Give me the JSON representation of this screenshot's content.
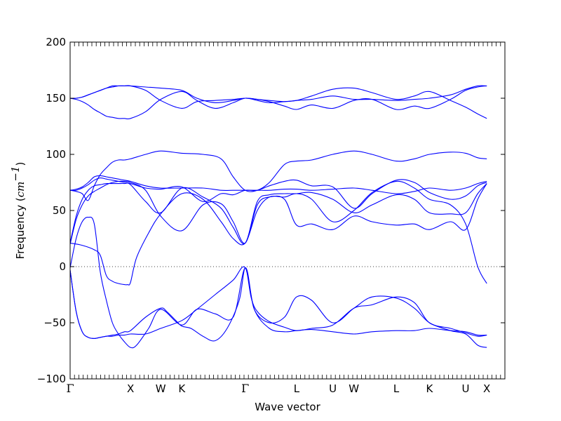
{
  "chart_data": {
    "type": "line",
    "title": "",
    "xlabel": "Wave vector",
    "ylabel": {
      "prefix": "Frequency (",
      "unit_base": "cm",
      "unit_exponent": "−1",
      "suffix": ")"
    },
    "ylim": [
      -100,
      200
    ],
    "yticks": [
      -100,
      -50,
      0,
      50,
      100,
      150,
      200
    ],
    "ytick_labels": [
      "−100",
      "−50",
      "0",
      "50",
      "100",
      "150",
      "200"
    ],
    "xlim": [
      0,
      7.2
    ],
    "high_symmetry_points": [
      {
        "label": "Γ",
        "x": 0
      },
      {
        "label": "X",
        "x": 1.0
      },
      {
        "label": "W",
        "x": 1.5
      },
      {
        "label": "K",
        "x": 1.85
      },
      {
        "label": "Γ",
        "x": 2.9
      },
      {
        "label": "L",
        "x": 3.75
      },
      {
        "label": "U",
        "x": 4.35
      },
      {
        "label": "W",
        "x": 4.7
      },
      {
        "label": "L",
        "x": 5.4
      },
      {
        "label": "K",
        "x": 5.95
      },
      {
        "label": "U",
        "x": 6.55
      },
      {
        "label": "X",
        "x": 6.9
      }
    ],
    "zero_line": true,
    "line_color": "#0000ff",
    "bands": [
      {
        "x": [
          0,
          0.1,
          0.2,
          0.3,
          0.4,
          0.5,
          0.6,
          0.7,
          0.8,
          0.9,
          1.0,
          1.25,
          1.5,
          1.85,
          2.1,
          2.4,
          2.7,
          2.9,
          3.05,
          3.3,
          3.55,
          3.75,
          4.0,
          4.35,
          4.7,
          5.0,
          5.4,
          5.7,
          5.95,
          6.3,
          6.55,
          6.75,
          6.9
        ],
        "y": [
          -3,
          -40,
          -58,
          -63,
          -64,
          -63,
          -62,
          -62,
          -61,
          -61,
          -60,
          -60,
          -55,
          -48,
          -38,
          -25,
          -12,
          -1,
          -38,
          -55,
          -58,
          -57,
          -56,
          -58,
          -60,
          -58,
          -57,
          -57,
          -55,
          -57,
          -58,
          -61,
          -61
        ]
      },
      {
        "x": [
          0,
          0.1,
          0.2,
          0.3,
          0.4,
          0.5,
          0.6,
          0.7,
          0.8,
          0.9,
          1.0,
          1.25,
          1.5,
          1.6,
          1.75,
          1.85,
          2.0,
          2.2,
          2.4,
          2.6,
          2.8,
          2.9,
          3.0,
          3.1,
          3.3,
          3.55,
          3.75,
          4.0,
          4.35,
          4.7,
          5.0,
          5.4,
          5.7,
          5.95,
          6.3,
          6.55,
          6.75,
          6.9
        ],
        "y": [
          -3,
          -40,
          -58,
          -63,
          -64,
          -63,
          -62,
          -61,
          -60,
          -58,
          -57,
          -45,
          -37,
          -40,
          -48,
          -53,
          -55,
          -62,
          -66,
          -55,
          -30,
          -1,
          -28,
          -40,
          -49,
          -54,
          -57,
          -55,
          -52,
          -37,
          -34,
          -27,
          -32,
          -50,
          -55,
          -59,
          -62,
          -61
        ]
      },
      {
        "x": [
          0,
          0.1,
          0.2,
          0.3,
          0.4,
          0.5,
          0.6,
          0.7,
          0.8,
          0.9,
          1.0,
          1.1,
          1.3,
          1.5,
          1.85,
          2.1,
          2.4,
          2.7,
          2.9,
          3.05,
          3.3,
          3.55,
          3.75,
          4.0,
          4.35,
          4.7,
          5.0,
          5.4,
          5.7,
          5.95,
          6.3,
          6.55,
          6.75,
          6.9
        ],
        "y": [
          -1,
          25,
          40,
          44,
          38,
          -5,
          -30,
          -50,
          -60,
          -67,
          -72,
          -70,
          -55,
          -38,
          -52,
          -38,
          -42,
          -45,
          -1,
          -38,
          -50,
          -45,
          -27,
          -30,
          -50,
          -37,
          -27,
          -28,
          -37,
          -50,
          -57,
          -60,
          -70,
          -72
        ]
      },
      {
        "x": [
          0,
          0.2,
          0.4,
          0.5,
          0.6,
          0.7,
          0.8,
          0.9,
          0.95,
          1.0,
          1.1,
          1.3,
          1.5,
          1.85,
          2.2,
          2.5,
          2.7,
          2.9,
          3.1,
          3.3,
          3.55,
          3.75,
          4.0,
          4.35,
          4.7,
          5.0,
          5.4,
          5.7,
          5.95,
          6.3,
          6.55,
          6.75,
          6.9
        ],
        "y": [
          21,
          19,
          15,
          10,
          -8,
          -13,
          -15,
          -16,
          -16,
          -14,
          8,
          30,
          47,
          65,
          60,
          40,
          25,
          21,
          50,
          62,
          62,
          65,
          60,
          40,
          50,
          66,
          76,
          70,
          60,
          55,
          38,
          0,
          -15
        ]
      },
      {
        "x": [
          0,
          0.1,
          0.2,
          0.3,
          0.4,
          0.5,
          0.6,
          0.7,
          0.8,
          0.9,
          1.0,
          1.25,
          1.5,
          1.85,
          2.2,
          2.5,
          2.7,
          2.9,
          3.1,
          3.3,
          3.55,
          3.75,
          4.0,
          4.35,
          4.7,
          5.0,
          5.4,
          5.7,
          5.95,
          6.3,
          6.55,
          6.75,
          6.9
        ],
        "y": [
          20,
          42,
          55,
          63,
          67,
          70,
          73,
          75,
          76,
          76,
          75,
          68,
          45,
          32,
          55,
          56,
          40,
          21,
          55,
          62,
          60,
          37,
          38,
          33,
          45,
          40,
          37,
          38,
          33,
          40,
          33,
          60,
          74
        ]
      },
      {
        "x": [
          0,
          0.1,
          0.2,
          0.3,
          0.4,
          0.5,
          0.6,
          0.7,
          0.8,
          0.9,
          1.0,
          1.25,
          1.5,
          1.85,
          2.2,
          2.5,
          2.7,
          2.9,
          3.1,
          3.3,
          3.55,
          3.75,
          4.0,
          4.35,
          4.7,
          5.0,
          5.4,
          5.7,
          5.95,
          6.3,
          6.55,
          6.75,
          6.9
        ],
        "y": [
          21,
          45,
          60,
          68,
          72,
          73,
          74,
          74,
          74,
          74,
          73,
          58,
          48,
          70,
          62,
          52,
          35,
          21,
          58,
          64,
          65,
          65,
          66,
          60,
          48,
          55,
          64,
          60,
          48,
          47,
          48,
          65,
          74
        ]
      },
      {
        "x": [
          0,
          0.1,
          0.2,
          0.3,
          0.4,
          0.5,
          0.6,
          0.7,
          0.8,
          0.9,
          1.0,
          1.25,
          1.5,
          1.85,
          2.2,
          2.5,
          2.7,
          2.9,
          3.1,
          3.3,
          3.55,
          3.75,
          4.0,
          4.35,
          4.7,
          5.0,
          5.4,
          5.7,
          5.95,
          6.3,
          6.55,
          6.75,
          6.9
        ],
        "y": [
          68,
          68,
          70,
          73,
          77,
          79,
          78,
          77,
          76,
          75,
          74,
          70,
          69,
          71,
          58,
          65,
          64,
          68,
          68,
          72,
          76,
          77,
          72,
          71,
          52,
          65,
          77,
          75,
          66,
          60,
          63,
          72,
          75
        ]
      },
      {
        "x": [
          0,
          0.1,
          0.2,
          0.3,
          0.4,
          0.5,
          0.6,
          0.7,
          0.8,
          0.9,
          1.0,
          1.25,
          1.5,
          1.85,
          2.2,
          2.5,
          2.7,
          2.9,
          3.1,
          3.3,
          3.55,
          3.75,
          4.0,
          4.35,
          4.7,
          5.0,
          5.4,
          5.7,
          5.95,
          6.3,
          6.55,
          6.75,
          6.9
        ],
        "y": [
          68,
          69,
          71,
          75,
          80,
          81,
          80,
          79,
          78,
          77,
          76,
          72,
          70,
          70,
          70,
          68,
          68,
          68,
          68,
          68,
          69,
          69,
          68,
          69,
          70,
          68,
          65,
          67,
          70,
          68,
          70,
          74,
          76
        ]
      },
      {
        "x": [
          0,
          0.1,
          0.2,
          0.3,
          0.4,
          0.5,
          0.6,
          0.7,
          0.8,
          0.9,
          1.0,
          1.25,
          1.5,
          1.85,
          2.2,
          2.5,
          2.7,
          2.9,
          3.1,
          3.3,
          3.55,
          3.75,
          4.0,
          4.35,
          4.7,
          5.0,
          5.4,
          5.7,
          5.95,
          6.3,
          6.55,
          6.75,
          6.9
        ],
        "y": [
          68,
          67,
          65,
          59,
          72,
          82,
          88,
          93,
          95,
          95,
          96,
          100,
          103,
          101,
          100,
          96,
          80,
          68,
          68,
          75,
          91,
          94,
          95,
          100,
          103,
          100,
          94,
          96,
          100,
          102,
          101,
          97,
          96
        ]
      },
      {
        "x": [
          0,
          0.1,
          0.2,
          0.3,
          0.4,
          0.5,
          0.6,
          0.7,
          0.8,
          0.9,
          1.0,
          1.25,
          1.5,
          1.85,
          2.1,
          2.4,
          2.7,
          2.9,
          3.1,
          3.3,
          3.55,
          3.75,
          4.0,
          4.35,
          4.7,
          5.0,
          5.4,
          5.7,
          5.95,
          6.3,
          6.55,
          6.75,
          6.9
        ],
        "y": [
          150,
          149,
          147,
          144,
          140,
          137,
          134,
          133,
          132,
          132,
          132,
          138,
          149,
          156,
          148,
          141,
          146,
          150,
          148,
          146,
          147,
          148,
          152,
          158,
          159,
          155,
          149,
          152,
          156,
          148,
          142,
          136,
          132
        ]
      },
      {
        "x": [
          0,
          0.1,
          0.2,
          0.3,
          0.4,
          0.5,
          0.6,
          0.7,
          0.8,
          0.9,
          1.0,
          1.25,
          1.5,
          1.85,
          2.1,
          2.4,
          2.7,
          2.9,
          3.1,
          3.3,
          3.55,
          3.75,
          4.0,
          4.35,
          4.7,
          5.0,
          5.4,
          5.7,
          5.95,
          6.3,
          6.55,
          6.75,
          6.9
        ],
        "y": [
          150,
          150,
          151,
          153,
          155,
          157,
          159,
          161,
          161,
          161,
          161,
          157,
          148,
          141,
          147,
          148,
          149,
          150,
          149,
          148,
          147,
          148,
          149,
          152,
          149,
          149,
          148,
          149,
          150,
          153,
          158,
          161,
          161
        ]
      },
      {
        "x": [
          0,
          0.1,
          0.2,
          0.3,
          0.4,
          0.5,
          0.6,
          0.7,
          0.8,
          0.9,
          1.0,
          1.25,
          1.5,
          1.85,
          2.1,
          2.4,
          2.7,
          2.9,
          3.1,
          3.3,
          3.55,
          3.75,
          4.0,
          4.35,
          4.7,
          5.0,
          5.4,
          5.7,
          5.95,
          6.3,
          6.55,
          6.75,
          6.9
        ],
        "y": [
          150,
          150,
          151,
          153,
          155,
          157,
          159,
          160,
          161,
          161,
          161,
          160,
          159,
          157,
          150,
          146,
          148,
          150,
          149,
          147,
          143,
          140,
          144,
          141,
          148,
          149,
          140,
          143,
          141,
          149,
          157,
          160,
          161
        ]
      }
    ]
  }
}
